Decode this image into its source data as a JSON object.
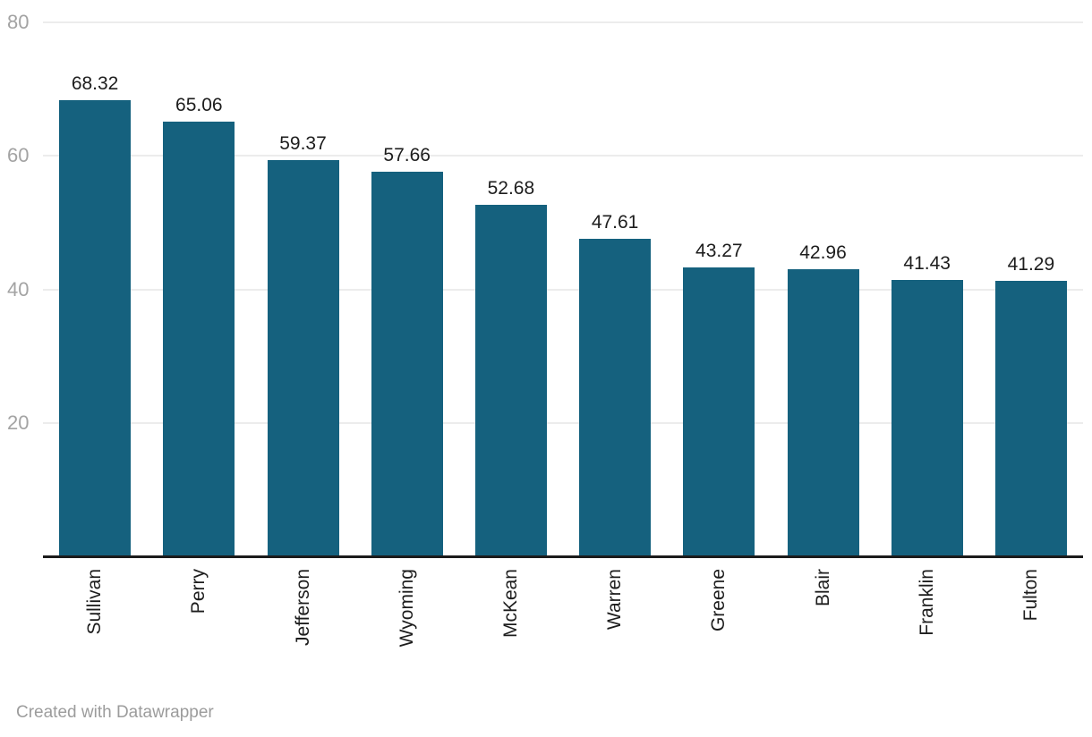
{
  "chart_data": {
    "type": "bar",
    "categories": [
      "Sullivan",
      "Perry",
      "Jefferson",
      "Wyoming",
      "McKean",
      "Warren",
      "Greene",
      "Blair",
      "Franklin",
      "Fulton"
    ],
    "values": [
      68.32,
      65.06,
      59.37,
      57.66,
      52.68,
      47.61,
      43.27,
      42.96,
      41.43,
      41.29
    ],
    "data_labels": [
      "68.32",
      "65.06",
      "59.37",
      "57.66",
      "52.68",
      "47.61",
      "43.27",
      "42.96",
      "41.43",
      "41.29"
    ],
    "y_ticks": [
      "20",
      "40",
      "60",
      "80"
    ],
    "y_tick_values": [
      20,
      40,
      60,
      80
    ],
    "ylim": [
      0,
      83.4
    ],
    "grid": "horizontal",
    "legend": "none",
    "title": "",
    "xlabel": "",
    "ylabel": ""
  },
  "style": {
    "bar_color": "#15617e",
    "grid_color": "#ececec",
    "axis_color": "#1b1b1b",
    "y_tick_color": "#a3a3a3",
    "value_label_color": "#1d1d1d",
    "category_label_color": "#1d1d1d",
    "footer_color": "#9c9c9c"
  },
  "footer": {
    "attribution": "Created with Datawrapper"
  }
}
